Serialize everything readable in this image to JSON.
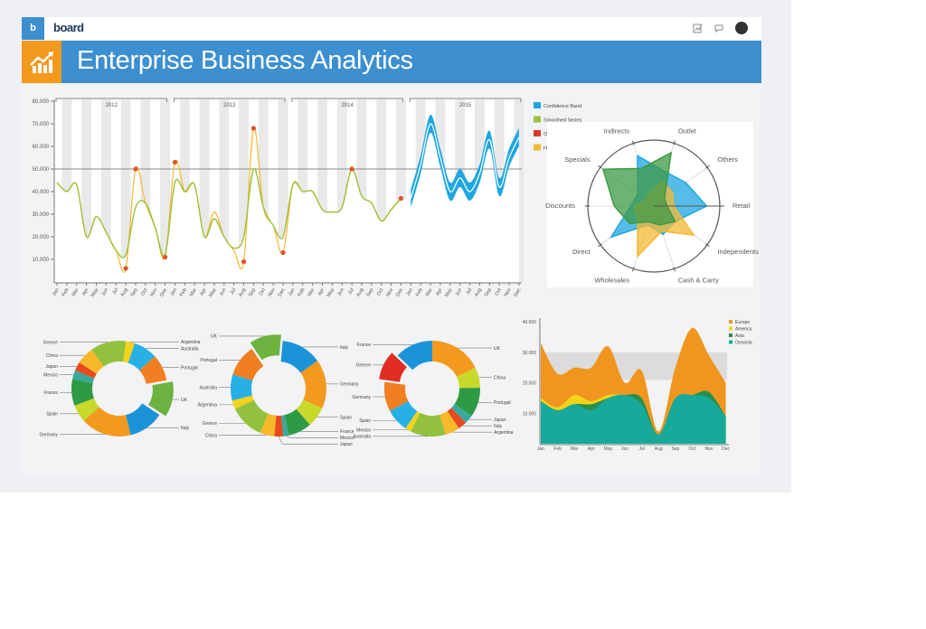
{
  "app": {
    "logo_letter": "b",
    "brand": "board"
  },
  "header": {
    "title": "Enterprise Business Analytics",
    "icons": [
      "report-icon",
      "chat-icon",
      "user-avatar"
    ]
  },
  "colors": {
    "header_blue": "#3d8fcf",
    "accent_orange": "#f39a1e"
  },
  "chart_data": [
    {
      "type": "line",
      "y_tick_labels": [
        "80.000",
        "70.000",
        "60.000",
        "50.000",
        "40.000",
        "30.000",
        "20.000",
        "10.000"
      ],
      "ylim": [
        0,
        80000
      ],
      "reference_line": 50000,
      "years": [
        "2012",
        "2013",
        "2014",
        "2015"
      ],
      "month_labels": [
        "Jan",
        "Feb",
        "Mar",
        "Apr",
        "May",
        "Jun",
        "Jul",
        "Aug",
        "Sep",
        "Oct",
        "Nov",
        "Dec"
      ],
      "legend": [
        {
          "label": "Confidence Band",
          "color": "#1ea7e0"
        },
        {
          "label": "Smoothed Series",
          "color": "#9bc23c"
        },
        {
          "label": "Outliers",
          "color": "#d93a2b"
        },
        {
          "label": "Historical Data",
          "color": "#f4b833"
        }
      ],
      "series": [
        {
          "name": "Smoothed Series",
          "values": [
            44000,
            40000,
            43000,
            20000,
            29000,
            22000,
            14000,
            12000,
            33000,
            35000,
            24000,
            12000,
            44000,
            40000,
            43000,
            20000,
            28000,
            20000,
            15000,
            20000,
            50000,
            33000,
            25000,
            20000,
            43000,
            40000,
            40000,
            32000,
            31000,
            33000,
            50000,
            38000,
            35000,
            27000,
            32000,
            37000
          ]
        },
        {
          "name": "Historical Data",
          "values": [
            44000,
            40000,
            43000,
            20000,
            29000,
            22000,
            14000,
            6000,
            50000,
            35000,
            24000,
            11000,
            53000,
            40000,
            43000,
            20000,
            31000,
            20000,
            14000,
            9000,
            68000,
            33000,
            25000,
            13000,
            43000,
            40000,
            40000,
            32000,
            31000,
            33000,
            50000,
            38000,
            35000,
            27000,
            32000,
            37000
          ]
        },
        {
          "name": "Outliers",
          "points": [
            [
              "2012-Aug",
              6000
            ],
            [
              "2012-Sep",
              50000
            ],
            [
              "2012-Dec",
              11000
            ],
            [
              "2013-Jan",
              53000
            ],
            [
              "2013-Aug",
              9000
            ],
            [
              "2013-Sep",
              68000
            ],
            [
              "2013-Dec",
              13000
            ],
            [
              "2014-Jul",
              50000
            ],
            [
              "2014-Dec",
              37000
            ]
          ]
        },
        {
          "name": "Confidence Band",
          "values": [
            37000,
            52000,
            70000,
            55000,
            40000,
            46000,
            40000,
            48000,
            63000,
            42000,
            55000,
            64000
          ],
          "band": 4000
        }
      ]
    },
    {
      "type": "radar",
      "axes": [
        "Retail",
        "Others",
        "Outlet",
        "Indirects",
        "Specials",
        "Discounts",
        "Direct",
        "Wholesales",
        "Cash & Carry",
        "Independents"
      ],
      "series": [
        {
          "color": "#1ea7e0",
          "values": [
            0.8,
            0.6,
            0.55,
            0.8,
            0.3,
            0.35,
            0.8,
            0.3,
            0.45,
            0.4
          ]
        },
        {
          "color": "#f4b833",
          "values": [
            0.3,
            0.35,
            0.4,
            0.2,
            0.15,
            0.3,
            0.3,
            0.8,
            0.4,
            0.75
          ]
        },
        {
          "color": "#3f9a45",
          "values": [
            0.2,
            0.2,
            0.85,
            0.6,
            0.95,
            0.6,
            0.45,
            0.25,
            0.3,
            0.4
          ]
        }
      ]
    },
    {
      "type": "pie",
      "donut": true,
      "slices": [
        {
          "label": "Argentina",
          "value": 3,
          "color": "#f5d21b"
        },
        {
          "label": "Australia",
          "value": 8,
          "color": "#27b0e6"
        },
        {
          "label": "Portugal",
          "value": 9,
          "color": "#f07f22"
        },
        {
          "label": "UK",
          "value": 12,
          "color": "#6db33f",
          "exploded": true
        },
        {
          "label": "Italy",
          "value": 12,
          "color": "#1b93d9"
        },
        {
          "label": "Germany",
          "value": 17,
          "color": "#f39a1e"
        },
        {
          "label": "Spain",
          "value": 6,
          "color": "#c8d92b"
        },
        {
          "label": "France",
          "value": 9,
          "color": "#2e9a46"
        },
        {
          "label": "Mexico",
          "value": 3,
          "color": "#3aa89c"
        },
        {
          "label": "Japan",
          "value": 3,
          "color": "#e8491d"
        },
        {
          "label": "China",
          "value": 6,
          "color": "#f7b82a"
        },
        {
          "label": "Greece",
          "value": 12,
          "color": "#93c13e"
        }
      ]
    },
    {
      "type": "pie",
      "donut": true,
      "slices": [
        {
          "label": "Italy",
          "value": 14,
          "color": "#1b93d9"
        },
        {
          "label": "Germany",
          "value": 17,
          "color": "#f39a1e"
        },
        {
          "label": "Spain",
          "value": 7,
          "color": "#c8d92b"
        },
        {
          "label": "France",
          "value": 8,
          "color": "#2e9a46"
        },
        {
          "label": "Mexico",
          "value": 2,
          "color": "#3aa89c"
        },
        {
          "label": "Japan",
          "value": 3,
          "color": "#e8491d"
        },
        {
          "label": "China",
          "value": 5,
          "color": "#f7b82a"
        },
        {
          "label": "Greece",
          "value": 12,
          "color": "#93c13e"
        },
        {
          "label": "Argentina",
          "value": 3,
          "color": "#f5d21b"
        },
        {
          "label": "Australia",
          "value": 9,
          "color": "#27b0e6"
        },
        {
          "label": "Portugal",
          "value": 11,
          "color": "#f07f22"
        },
        {
          "label": "UK",
          "value": 11,
          "color": "#6db33f",
          "exploded": true
        }
      ]
    },
    {
      "type": "pie",
      "donut": true,
      "slices": [
        {
          "label": "UK",
          "value": 18,
          "color": "#f39a1e"
        },
        {
          "label": "China",
          "value": 7,
          "color": "#c8d92b"
        },
        {
          "label": "Portugal",
          "value": 10,
          "color": "#2e9a46"
        },
        {
          "label": "Japan",
          "value": 3,
          "color": "#3aa89c"
        },
        {
          "label": "Italy",
          "value": 3,
          "color": "#e8491d"
        },
        {
          "label": "Argentina",
          "value": 5,
          "color": "#f7b82a"
        },
        {
          "label": "Australia",
          "value": 12,
          "color": "#93c13e"
        },
        {
          "label": "Mexico",
          "value": 2,
          "color": "#f5d21b"
        },
        {
          "label": "Spain",
          "value": 8,
          "color": "#27b0e6"
        },
        {
          "label": "Germany",
          "value": 10,
          "color": "#f07f22"
        },
        {
          "label": "Greece",
          "value": 10,
          "color": "#e02e24",
          "exploded": true
        },
        {
          "label": "France",
          "value": 13,
          "color": "#1b93d9"
        }
      ]
    },
    {
      "type": "area",
      "stacked": true,
      "categories": [
        "Jan",
        "Feb",
        "Mar",
        "Apr",
        "May",
        "Jun",
        "Jul",
        "Aug",
        "Sep",
        "Oct",
        "Nov",
        "Dec"
      ],
      "y_tick_labels": [
        "40.000",
        "30.000",
        "20.000",
        "10.000"
      ],
      "ylim": [
        0,
        40000
      ],
      "band": [
        21000,
        30000
      ],
      "legend_position": "top-right",
      "series": [
        {
          "name": "Oceania",
          "color": "#17a99a",
          "values": [
            14000,
            11000,
            13000,
            11000,
            15000,
            16000,
            13000,
            3000,
            15000,
            16000,
            15000,
            9000
          ]
        },
        {
          "name": "Asia",
          "color": "#2a8f4a",
          "values": [
            0,
            0,
            0,
            2000,
            0,
            0,
            2000,
            0,
            0,
            0,
            2000,
            0
          ]
        },
        {
          "name": "America",
          "color": "#f3d418",
          "values": [
            1000,
            1000,
            3000,
            1000,
            1000,
            0,
            0,
            0,
            0,
            0,
            0,
            0
          ]
        },
        {
          "name": "Europe",
          "color": "#f0961f",
          "values": [
            18000,
            11000,
            9000,
            11000,
            16000,
            4000,
            9000,
            1000,
            10000,
            22000,
            12000,
            11000
          ]
        }
      ]
    }
  ]
}
